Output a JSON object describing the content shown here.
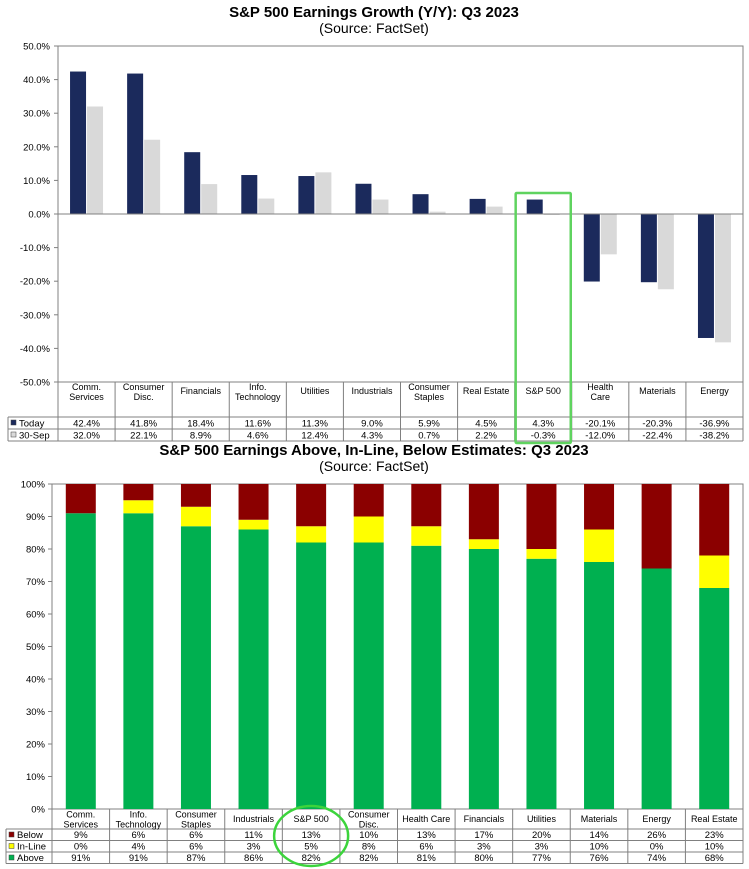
{
  "chart_data": [
    {
      "type": "bar",
      "title": "S&P 500 Earnings Growth (Y/Y): Q3 2023",
      "subtitle": "(Source: FactSet)",
      "categories": [
        [
          "Comm.",
          "Services"
        ],
        [
          "Consumer",
          "Disc."
        ],
        [
          "Financials"
        ],
        [
          "Info.",
          "Technology"
        ],
        [
          "Utilities"
        ],
        [
          "Industrials"
        ],
        [
          "Consumer",
          "Staples"
        ],
        [
          "Real Estate"
        ],
        [
          "S&P 500"
        ],
        [
          "Health",
          "Care"
        ],
        [
          "Materials"
        ],
        [
          "Energy"
        ]
      ],
      "series": [
        {
          "name": "Today",
          "color": "#1b2a5c",
          "values": [
            42.4,
            41.8,
            18.4,
            11.6,
            11.3,
            9.0,
            5.9,
            4.5,
            4.3,
            -20.1,
            -20.3,
            -36.9
          ],
          "labels": [
            "42.4%",
            "41.8%",
            "18.4%",
            "11.6%",
            "11.3%",
            "9.0%",
            "5.9%",
            "4.5%",
            "4.3%",
            "-20.1%",
            "-20.3%",
            "-36.9%"
          ]
        },
        {
          "name": "30-Sep",
          "color": "#d9d9d9",
          "values": [
            32.0,
            22.1,
            8.9,
            4.6,
            12.4,
            4.3,
            0.7,
            2.2,
            -0.3,
            -12.0,
            -22.4,
            -38.2
          ],
          "labels": [
            "32.0%",
            "22.1%",
            "8.9%",
            "4.6%",
            "12.4%",
            "4.3%",
            "0.7%",
            "2.2%",
            "-0.3%",
            "-12.0%",
            "-22.4%",
            "-38.2%"
          ]
        }
      ],
      "ylim": [
        -50,
        50
      ],
      "yticks": [
        "50.0%",
        "40.0%",
        "30.0%",
        "20.0%",
        "10.0%",
        "0.0%",
        "-10.0%",
        "-20.0%",
        "-30.0%",
        "-40.0%",
        "-50.0%"
      ],
      "highlight_category": "S&P 500",
      "highlight_color": "#5fd35f"
    },
    {
      "type": "bar",
      "stacked": true,
      "title": "S&P 500 Earnings Above, In-Line, Below Estimates: Q3 2023",
      "subtitle": "(Source: FactSet)",
      "categories": [
        [
          "Comm.",
          "Services"
        ],
        [
          "Info.",
          "Technology"
        ],
        [
          "Consumer",
          "Staples"
        ],
        [
          "Industrials"
        ],
        [
          "S&P 500"
        ],
        [
          "Consumer",
          "Disc."
        ],
        [
          "Health Care"
        ],
        [
          "Financials"
        ],
        [
          "Utilities"
        ],
        [
          "Materials"
        ],
        [
          "Energy"
        ],
        [
          "Real Estate"
        ]
      ],
      "series": [
        {
          "name": "Below",
          "color": "#8b0000",
          "values": [
            9,
            6,
            6,
            11,
            13,
            10,
            13,
            17,
            20,
            14,
            26,
            23
          ],
          "labels": [
            "9%",
            "6%",
            "6%",
            "11%",
            "13%",
            "10%",
            "13%",
            "17%",
            "20%",
            "14%",
            "26%",
            "23%"
          ]
        },
        {
          "name": "In-Line",
          "color": "#ffff00",
          "values": [
            0,
            4,
            6,
            3,
            5,
            8,
            6,
            3,
            3,
            10,
            0,
            10
          ],
          "labels": [
            "0%",
            "4%",
            "6%",
            "3%",
            "5%",
            "8%",
            "6%",
            "3%",
            "3%",
            "10%",
            "0%",
            "10%"
          ]
        },
        {
          "name": "Above",
          "color": "#00b050",
          "values": [
            91,
            91,
            87,
            86,
            82,
            82,
            81,
            80,
            77,
            76,
            74,
            68
          ],
          "labels": [
            "91%",
            "91%",
            "87%",
            "86%",
            "82%",
            "82%",
            "81%",
            "80%",
            "77%",
            "76%",
            "74%",
            "68%"
          ]
        }
      ],
      "ylim": [
        0,
        100
      ],
      "yticks": [
        "100%",
        "90%",
        "80%",
        "70%",
        "60%",
        "50%",
        "40%",
        "30%",
        "20%",
        "10%",
        "0%"
      ],
      "highlight_category": "S&P 500",
      "highlight_color": "#3cd43c"
    }
  ]
}
